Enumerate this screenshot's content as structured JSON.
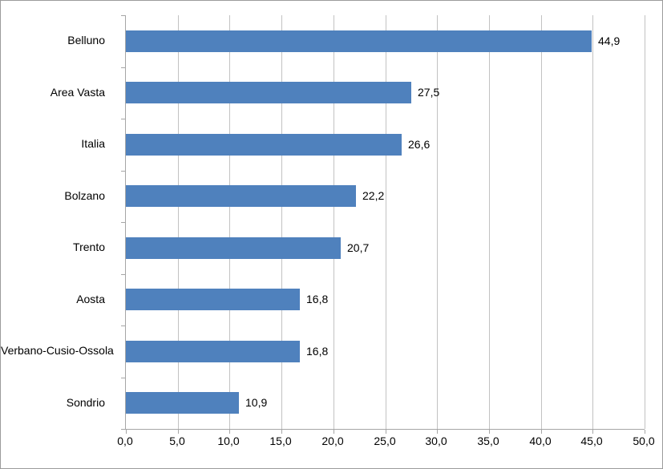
{
  "chart_data": {
    "type": "bar",
    "orientation": "horizontal",
    "title": "",
    "xlabel": "",
    "ylabel": "",
    "categories": [
      "Belluno",
      "Area Vasta",
      "Italia",
      "Bolzano",
      "Trento",
      "Aosta",
      "Verbano-Cusio-Ossola",
      "Sondrio"
    ],
    "values": [
      44.9,
      27.5,
      26.6,
      22.2,
      20.7,
      16.8,
      16.8,
      10.9
    ],
    "data_labels": [
      "44,9",
      "27,5",
      "26,6",
      "22,2",
      "20,7",
      "16,8",
      "16,8",
      "10,9"
    ],
    "xlim": [
      0,
      50
    ],
    "x_tick_step": 5,
    "x_tick_labels": [
      "0,0",
      "5,0",
      "10,0",
      "15,0",
      "20,0",
      "25,0",
      "30,0",
      "35,0",
      "40,0",
      "45,0",
      "50,0"
    ],
    "grid": "vertical-only",
    "legend": "none",
    "colors": {
      "bar": "#4f81bd",
      "gridline": "#c2c2c2",
      "axis": "#a6a6a6",
      "text": "#000000",
      "background": "#ffffff",
      "frame_border": "#9b9b9b"
    }
  }
}
